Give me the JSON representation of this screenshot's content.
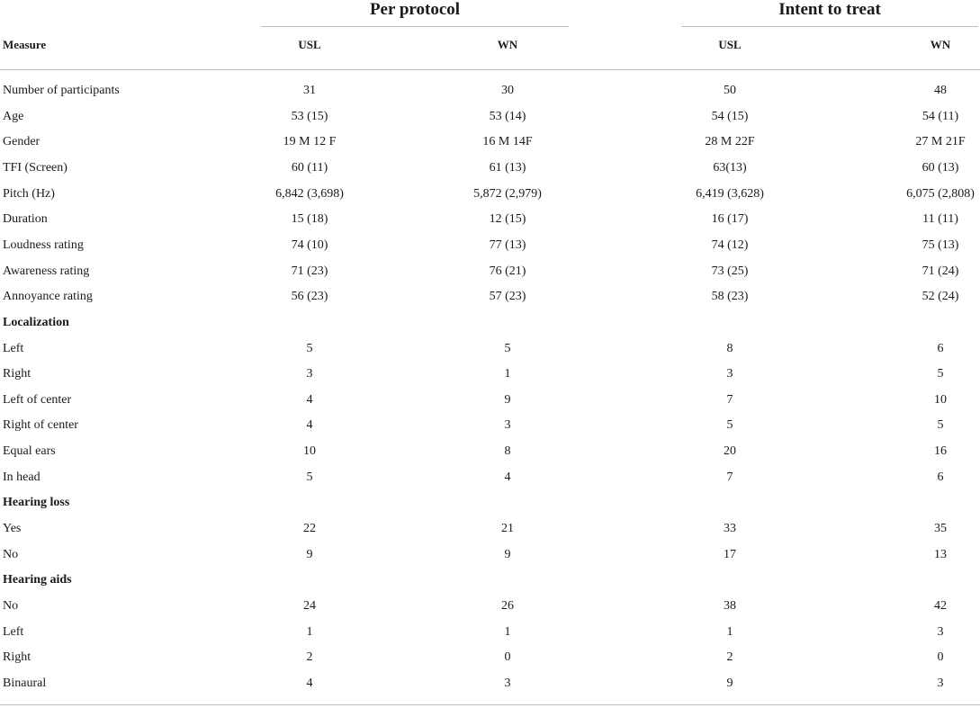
{
  "table": {
    "groups": {
      "per_protocol": "Per protocol",
      "intent_to_treat": "Intent to treat"
    },
    "columns": {
      "measure": "Measure",
      "pp_usl": "USL",
      "pp_wn": "WN",
      "itt_usl": "USL",
      "itt_wn": "WN"
    },
    "rows": [
      {
        "label": "Number of participants",
        "section": false,
        "values": [
          "31",
          "30",
          "50",
          "48"
        ]
      },
      {
        "label": "Age",
        "section": false,
        "values": [
          "53 (15)",
          "53 (14)",
          "54 (15)",
          "54 (11)"
        ]
      },
      {
        "label": "Gender",
        "section": false,
        "values": [
          "19 M 12 F",
          "16 M 14F",
          "28 M 22F",
          "27 M 21F"
        ]
      },
      {
        "label": "TFI (Screen)",
        "section": false,
        "values": [
          "60 (11)",
          "61 (13)",
          "63(13)",
          "60 (13)"
        ]
      },
      {
        "label": "Pitch (Hz)",
        "section": false,
        "values": [
          "6,842 (3,698)",
          "5,872 (2,979)",
          "6,419 (3,628)",
          "6,075 (2,808)"
        ]
      },
      {
        "label": "Duration",
        "section": false,
        "values": [
          "15 (18)",
          "12 (15)",
          "16 (17)",
          "11 (11)"
        ]
      },
      {
        "label": "Loudness rating",
        "section": false,
        "values": [
          "74 (10)",
          "77 (13)",
          "74 (12)",
          "75 (13)"
        ]
      },
      {
        "label": "Awareness rating",
        "section": false,
        "values": [
          "71 (23)",
          "76 (21)",
          "73 (25)",
          "71 (24)"
        ]
      },
      {
        "label": "Annoyance rating",
        "section": false,
        "values": [
          "56 (23)",
          "57 (23)",
          "58 (23)",
          "52 (24)"
        ]
      },
      {
        "label": "Localization",
        "section": true,
        "values": []
      },
      {
        "label": "Left",
        "section": false,
        "values": [
          "5",
          "5",
          "8",
          "6"
        ]
      },
      {
        "label": "Right",
        "section": false,
        "values": [
          "3",
          "1",
          "3",
          "5"
        ]
      },
      {
        "label": "Left of center",
        "section": false,
        "values": [
          "4",
          "9",
          "7",
          "10"
        ]
      },
      {
        "label": "Right of center",
        "section": false,
        "values": [
          "4",
          "3",
          "5",
          "5"
        ]
      },
      {
        "label": "Equal ears",
        "section": false,
        "values": [
          "10",
          "8",
          "20",
          "16"
        ]
      },
      {
        "label": "In head",
        "section": false,
        "values": [
          "5",
          "4",
          "7",
          "6"
        ]
      },
      {
        "label": "Hearing loss",
        "section": true,
        "values": []
      },
      {
        "label": "Yes",
        "section": false,
        "values": [
          "22",
          "21",
          "33",
          "35"
        ]
      },
      {
        "label": "No",
        "section": false,
        "values": [
          "9",
          "9",
          "17",
          "13"
        ]
      },
      {
        "label": "Hearing aids",
        "section": true,
        "values": []
      },
      {
        "label": "No",
        "section": false,
        "values": [
          "24",
          "26",
          "38",
          "42"
        ]
      },
      {
        "label": "Left",
        "section": false,
        "values": [
          "1",
          "1",
          "1",
          "3"
        ]
      },
      {
        "label": "Right",
        "section": false,
        "values": [
          "2",
          "0",
          "2",
          "0"
        ]
      },
      {
        "label": "Binaural",
        "section": false,
        "values": [
          "4",
          "3",
          "9",
          "3"
        ]
      }
    ]
  }
}
